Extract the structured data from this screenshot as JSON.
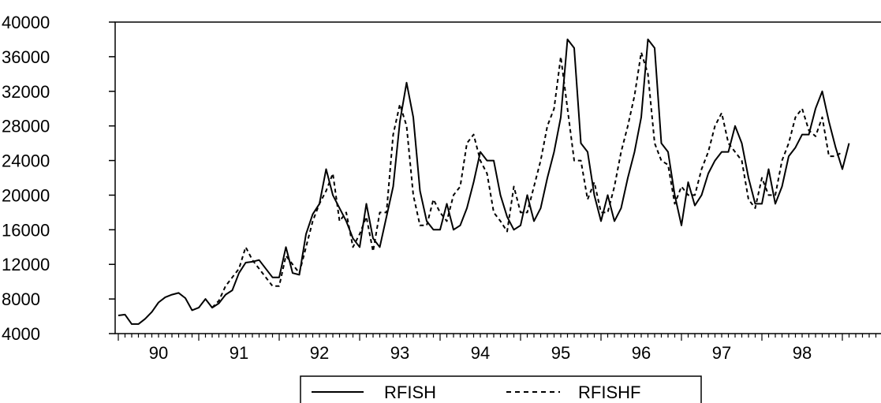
{
  "chart_data": {
    "type": "line",
    "title": "",
    "xlabel": "",
    "ylabel": "",
    "ylim": [
      4000,
      40000
    ],
    "y_ticks": [
      4000,
      8000,
      12000,
      16000,
      20000,
      24000,
      28000,
      32000,
      36000,
      40000
    ],
    "y_tick_labels": [
      "4000",
      "8000",
      "12000",
      "16000",
      "20000",
      "24000",
      "28000",
      "32000",
      "36000",
      "40000"
    ],
    "x_tick_labels": [
      "90",
      "91",
      "92",
      "93",
      "94",
      "95",
      "96",
      "97",
      "98"
    ],
    "frequency": "monthly",
    "start_label": "90",
    "grid": false,
    "legend_position": "bottom-center",
    "series": [
      {
        "name": "RFISH",
        "style": "solid",
        "color": "#000000",
        "start_index": 0,
        "values": [
          6100,
          6200,
          5100,
          5100,
          5700,
          6500,
          7600,
          8200,
          8500,
          8700,
          8100,
          6700,
          7000,
          8000,
          7000,
          7500,
          8500,
          9000,
          11000,
          12200,
          12300,
          12500,
          11500,
          10500,
          10500,
          14000,
          11000,
          10800,
          15500,
          17800,
          19000,
          23000,
          20000,
          18500,
          17000,
          15000,
          14000,
          19000,
          15000,
          14000,
          17500,
          21000,
          28500,
          33000,
          29000,
          20500,
          17000,
          16000,
          16000,
          19000,
          16000,
          16500,
          18500,
          21500,
          25000,
          24000,
          24000,
          20000,
          17500,
          16000,
          16500,
          20000,
          17000,
          18500,
          22000,
          25000,
          29000,
          38000,
          37000,
          26000,
          25000,
          20000,
          17000,
          20000,
          17000,
          18500,
          22000,
          25000,
          29000,
          38000,
          37000,
          26000,
          25000,
          20000,
          16500,
          21500,
          18800,
          20000,
          22500,
          24000,
          25000,
          25000,
          28000,
          26000,
          22000,
          19000,
          19000,
          23000,
          19000,
          21000,
          24500,
          25500,
          27000,
          27000,
          30000,
          32000,
          28500,
          25500,
          23000,
          26000
        ]
      },
      {
        "name": "RFISHF",
        "style": "dashed",
        "color": "#000000",
        "start_index": 14,
        "values": [
          7000,
          7800,
          9500,
          10500,
          11500,
          14000,
          12500,
          11500,
          10500,
          9500,
          9500,
          13000,
          12000,
          11000,
          14000,
          17000,
          19000,
          20500,
          22500,
          17000,
          18000,
          14000,
          15500,
          17500,
          13500,
          18000,
          18000,
          27000,
          30500,
          28000,
          20000,
          16500,
          16500,
          19500,
          18000,
          17000,
          20000,
          21000,
          26000,
          27000,
          24000,
          22500,
          18000,
          17000,
          15800,
          21000,
          18000,
          18000,
          21000,
          24000,
          28000,
          30000,
          36000,
          30000,
          24000,
          24000,
          19500,
          21500,
          18000,
          18000,
          21000,
          25000,
          28000,
          31500,
          36500,
          34000,
          26000,
          24000,
          23500,
          19000,
          21000,
          20000,
          20000,
          23000,
          25000,
          28000,
          29500,
          26000,
          25000,
          24000,
          19500,
          18500,
          22000,
          20000,
          20000,
          24000,
          26000,
          29000,
          30000,
          27500,
          26800,
          29000,
          24500,
          24500,
          25000
        ]
      }
    ]
  }
}
